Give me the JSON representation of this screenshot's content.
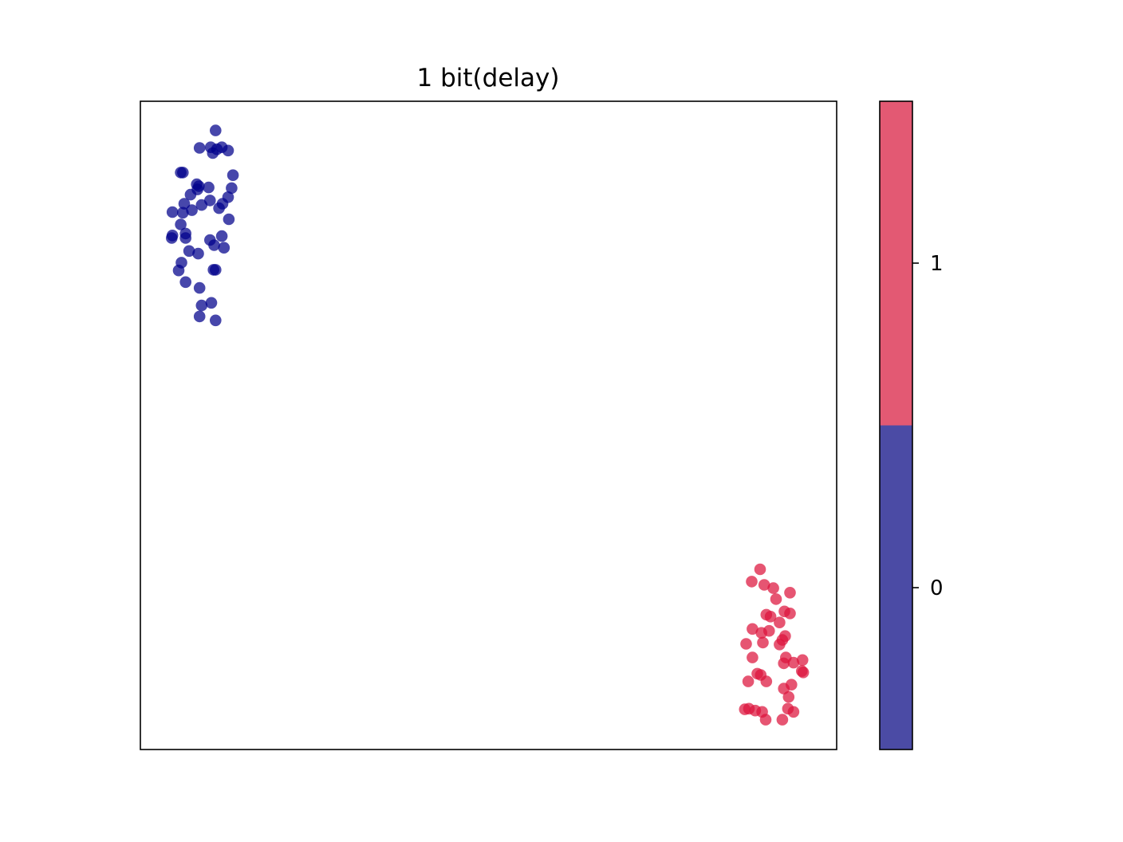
{
  "chart_data": {
    "type": "scatter",
    "title": "1 bit(delay)",
    "xlabel": "",
    "ylabel": "",
    "xticks": "none",
    "yticks": "none",
    "grid": false,
    "xlim": [
      0,
      100
    ],
    "ylim": [
      0,
      100
    ],
    "point_alpha": 0.72,
    "series": [
      {
        "class": 0,
        "color": "#00008b",
        "points": [
          [
            10.8,
            95.5
          ],
          [
            11.7,
            92.9
          ],
          [
            10.4,
            92.0
          ],
          [
            8.5,
            92.8
          ],
          [
            10.1,
            92.9
          ],
          [
            11.0,
            92.6
          ],
          [
            12.6,
            92.4
          ],
          [
            13.1,
            86.6
          ],
          [
            13.3,
            88.6
          ],
          [
            6.1,
            89.0
          ],
          [
            5.8,
            89.0
          ],
          [
            8.1,
            87.2
          ],
          [
            8.4,
            86.9
          ],
          [
            9.8,
            86.7
          ],
          [
            8.2,
            86.4
          ],
          [
            7.2,
            85.6
          ],
          [
            6.3,
            84.2
          ],
          [
            11.8,
            84.2
          ],
          [
            12.6,
            85.2
          ],
          [
            10.0,
            84.7
          ],
          [
            11.3,
            83.5
          ],
          [
            8.8,
            84.0
          ],
          [
            12.7,
            81.8
          ],
          [
            7.4,
            83.2
          ],
          [
            4.6,
            82.9
          ],
          [
            6.1,
            82.8
          ],
          [
            5.8,
            81.0
          ],
          [
            4.5,
            78.9
          ],
          [
            4.6,
            79.3
          ],
          [
            6.5,
            79.6
          ],
          [
            6.5,
            78.9
          ],
          [
            10.0,
            78.6
          ],
          [
            11.7,
            79.2
          ],
          [
            10.6,
            77.8
          ],
          [
            12.0,
            77.4
          ],
          [
            7.0,
            76.9
          ],
          [
            8.3,
            76.5
          ],
          [
            5.9,
            75.1
          ],
          [
            5.5,
            73.9
          ],
          [
            10.5,
            74.0
          ],
          [
            10.8,
            74.0
          ],
          [
            6.5,
            72.1
          ],
          [
            8.5,
            71.2
          ],
          [
            10.2,
            68.9
          ],
          [
            8.8,
            68.5
          ],
          [
            8.5,
            66.8
          ],
          [
            10.8,
            66.2
          ]
        ]
      },
      {
        "class": 1,
        "color": "#dc143c",
        "points": [
          [
            89.0,
            27.8
          ],
          [
            87.8,
            25.9
          ],
          [
            89.6,
            25.4
          ],
          [
            91.3,
            23.2
          ],
          [
            90.9,
            24.9
          ],
          [
            93.3,
            24.2
          ],
          [
            89.9,
            20.8
          ],
          [
            90.5,
            20.5
          ],
          [
            92.5,
            21.3
          ],
          [
            93.3,
            21.0
          ],
          [
            91.8,
            19.6
          ],
          [
            87.9,
            18.6
          ],
          [
            89.2,
            18.0
          ],
          [
            90.3,
            18.3
          ],
          [
            87.0,
            16.3
          ],
          [
            89.4,
            16.5
          ],
          [
            91.8,
            16.2
          ],
          [
            92.2,
            16.9
          ],
          [
            92.6,
            17.5
          ],
          [
            87.9,
            14.2
          ],
          [
            92.7,
            14.2
          ],
          [
            93.8,
            13.4
          ],
          [
            95.1,
            13.8
          ],
          [
            95.0,
            12.1
          ],
          [
            92.4,
            13.3
          ],
          [
            88.6,
            11.7
          ],
          [
            89.1,
            11.5
          ],
          [
            87.3,
            10.5
          ],
          [
            89.9,
            10.5
          ],
          [
            93.1,
            8.1
          ],
          [
            95.2,
            11.9
          ],
          [
            93.5,
            10.0
          ],
          [
            92.4,
            9.4
          ],
          [
            86.8,
            6.2
          ],
          [
            87.4,
            6.3
          ],
          [
            88.3,
            6.0
          ],
          [
            89.3,
            5.8
          ],
          [
            93.0,
            6.3
          ],
          [
            93.8,
            5.8
          ],
          [
            89.8,
            4.6
          ],
          [
            92.2,
            4.6
          ]
        ]
      }
    ],
    "colorbar": {
      "ticks": [
        "0",
        "1"
      ],
      "colors": [
        "#4b4ba5",
        "#e35973"
      ]
    }
  }
}
